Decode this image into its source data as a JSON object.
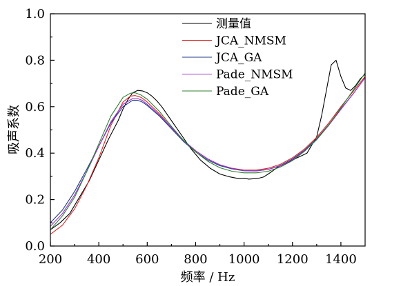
{
  "chart_data": {
    "type": "line",
    "xlabel": "频率 / Hz",
    "ylabel": "吸声系数",
    "xlim": [
      200,
      1500
    ],
    "ylim": [
      0.0,
      1.0
    ],
    "xticks": [
      200,
      400,
      600,
      800,
      1000,
      1200,
      1400
    ],
    "yticks": [
      0.0,
      0.2,
      0.4,
      0.6,
      0.8,
      1.0
    ],
    "ytick_labels": [
      "0.0",
      "0.2",
      "0.4",
      "0.6",
      "0.8",
      "1.0"
    ],
    "legend_position": "top-right",
    "grid": false,
    "series": [
      {
        "name": "测量值",
        "color": "#000000",
        "x": [
          200,
          240,
          280,
          320,
          360,
          400,
          440,
          480,
          500,
          520,
          540,
          560,
          580,
          600,
          620,
          640,
          660,
          700,
          740,
          780,
          820,
          860,
          900,
          940,
          980,
          1000,
          1020,
          1040,
          1060,
          1080,
          1100,
          1140,
          1180,
          1220,
          1260,
          1300,
          1320,
          1340,
          1360,
          1380,
          1400,
          1420,
          1440,
          1460,
          1480,
          1500
        ],
        "y": [
          0.07,
          0.1,
          0.14,
          0.21,
          0.28,
          0.37,
          0.46,
          0.54,
          0.59,
          0.63,
          0.66,
          0.67,
          0.668,
          0.66,
          0.645,
          0.625,
          0.6,
          0.54,
          0.48,
          0.42,
          0.37,
          0.335,
          0.31,
          0.298,
          0.29,
          0.292,
          0.288,
          0.29,
          0.292,
          0.297,
          0.31,
          0.34,
          0.36,
          0.38,
          0.4,
          0.47,
          0.56,
          0.67,
          0.78,
          0.8,
          0.73,
          0.68,
          0.67,
          0.69,
          0.72,
          0.74
        ]
      },
      {
        "name": "JCA_NMSM",
        "color": "#d62728",
        "x": [
          200,
          250,
          300,
          350,
          400,
          450,
          500,
          530,
          550,
          575,
          600,
          650,
          700,
          750,
          800,
          850,
          900,
          950,
          1000,
          1050,
          1100,
          1150,
          1200,
          1250,
          1300,
          1350,
          1400,
          1450,
          1500
        ],
        "y": [
          0.05,
          0.09,
          0.16,
          0.26,
          0.38,
          0.52,
          0.62,
          0.645,
          0.648,
          0.64,
          0.62,
          0.57,
          0.51,
          0.455,
          0.41,
          0.375,
          0.35,
          0.335,
          0.327,
          0.327,
          0.335,
          0.352,
          0.38,
          0.418,
          0.468,
          0.53,
          0.6,
          0.665,
          0.73
        ]
      },
      {
        "name": "JCA_GA",
        "color": "#1f3b8c",
        "x": [
          200,
          250,
          300,
          350,
          400,
          450,
          500,
          540,
          560,
          580,
          600,
          650,
          700,
          750,
          800,
          850,
          900,
          950,
          1000,
          1050,
          1100,
          1150,
          1200,
          1250,
          1300,
          1350,
          1400,
          1450,
          1500
        ],
        "y": [
          0.1,
          0.155,
          0.235,
          0.33,
          0.43,
          0.53,
          0.6,
          0.628,
          0.628,
          0.62,
          0.605,
          0.56,
          0.505,
          0.45,
          0.405,
          0.37,
          0.346,
          0.332,
          0.324,
          0.323,
          0.33,
          0.347,
          0.375,
          0.413,
          0.462,
          0.523,
          0.59,
          0.655,
          0.725
        ]
      },
      {
        "name": "Pade_NMSM",
        "color": "#9b30c8",
        "x": [
          200,
          250,
          300,
          350,
          400,
          450,
          500,
          540,
          560,
          580,
          600,
          650,
          700,
          750,
          800,
          850,
          900,
          950,
          1000,
          1050,
          1100,
          1150,
          1200,
          1250,
          1300,
          1350,
          1400,
          1450,
          1500
        ],
        "y": [
          0.085,
          0.14,
          0.22,
          0.32,
          0.43,
          0.535,
          0.61,
          0.635,
          0.635,
          0.627,
          0.61,
          0.565,
          0.51,
          0.455,
          0.41,
          0.375,
          0.35,
          0.334,
          0.325,
          0.324,
          0.33,
          0.345,
          0.372,
          0.41,
          0.458,
          0.52,
          0.588,
          0.655,
          0.725
        ]
      },
      {
        "name": "Pade_GA",
        "color": "#2e7d32",
        "x": [
          200,
          250,
          300,
          350,
          400,
          450,
          500,
          530,
          550,
          575,
          600,
          650,
          700,
          750,
          800,
          850,
          900,
          950,
          1000,
          1050,
          1100,
          1150,
          1200,
          1250,
          1300,
          1350,
          1400,
          1450,
          1500
        ],
        "y": [
          0.07,
          0.13,
          0.21,
          0.32,
          0.44,
          0.56,
          0.64,
          0.658,
          0.66,
          0.65,
          0.632,
          0.58,
          0.515,
          0.455,
          0.405,
          0.365,
          0.337,
          0.322,
          0.315,
          0.315,
          0.322,
          0.34,
          0.368,
          0.408,
          0.458,
          0.522,
          0.595,
          0.67,
          0.745
        ]
      }
    ]
  }
}
